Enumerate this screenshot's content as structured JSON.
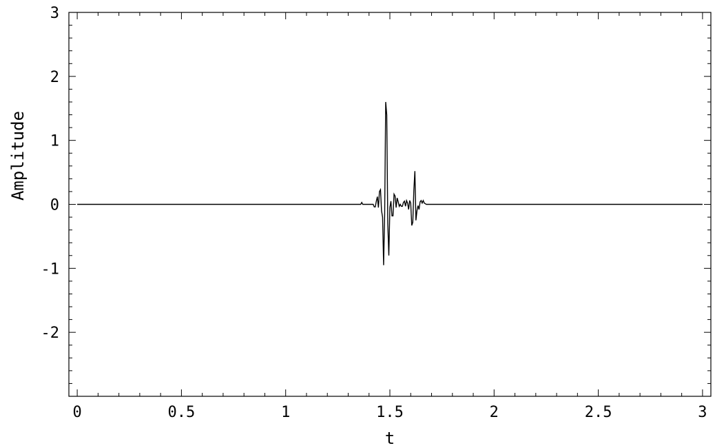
{
  "chart_data": {
    "type": "line",
    "title": "",
    "xlabel": "t",
    "ylabel": "Amplitude",
    "xlim": [
      -0.04,
      3.04
    ],
    "ylim": [
      -3.0,
      3.0
    ],
    "x_ticks": [
      0,
      0.5,
      1,
      1.5,
      2,
      2.5,
      3
    ],
    "x_tick_labels": [
      "0",
      "0.5",
      "1",
      "1.5",
      "2",
      "2.5",
      "3"
    ],
    "y_ticks": [
      -2,
      -1,
      0,
      1,
      2,
      3
    ],
    "y_tick_labels": [
      "-2",
      "-1",
      "0",
      "1",
      "2",
      "3"
    ],
    "grid": false,
    "line_color": "#000000",
    "series": [
      {
        "x": [
          0,
          1.36,
          1.365,
          1.37,
          1.375,
          1.38,
          1.39,
          1.4,
          1.41,
          1.42,
          1.425,
          1.43,
          1.435,
          1.44,
          1.445,
          1.45,
          1.455,
          1.46,
          1.465,
          1.47,
          1.475,
          1.48,
          1.485,
          1.49,
          1.495,
          1.5,
          1.505,
          1.51,
          1.515,
          1.52,
          1.525,
          1.53,
          1.535,
          1.54,
          1.545,
          1.55,
          1.555,
          1.56,
          1.565,
          1.57,
          1.575,
          1.58,
          1.585,
          1.59,
          1.595,
          1.6,
          1.605,
          1.61,
          1.615,
          1.62,
          1.625,
          1.63,
          1.635,
          1.64,
          1.645,
          1.65,
          1.655,
          1.66,
          1.665,
          1.67,
          1.675,
          1.68,
          1.685,
          1.69,
          1.695,
          1.7,
          1.705,
          1.71,
          1.715,
          1.72,
          1.725,
          1.73,
          1.735,
          1.74,
          1.745,
          1.75,
          3
        ],
        "y": [
          0,
          0,
          0.03,
          0,
          0,
          0,
          0,
          0,
          0,
          0,
          -0.04,
          -0.04,
          0.05,
          0.12,
          -0.05,
          0.2,
          0.23,
          -0.1,
          -0.2,
          -0.95,
          -0.15,
          1.6,
          1.4,
          -0.3,
          -0.8,
          -0.05,
          0.05,
          -0.18,
          -0.18,
          0.16,
          0.13,
          -0.05,
          0.1,
          0.04,
          -0.03,
          0,
          -0.03,
          -0.03,
          0.03,
          0.05,
          -0.03,
          0.06,
          0.02,
          -0.08,
          0.06,
          0.02,
          -0.33,
          -0.28,
          0.22,
          0.52,
          -0.25,
          -0.1,
          -0.02,
          -0.08,
          0.04,
          0.06,
          0.02,
          0.06,
          0.02,
          0.01,
          0,
          0,
          0,
          0,
          0,
          0,
          0,
          0,
          0,
          0,
          0,
          0,
          0,
          0,
          0,
          0,
          0
        ]
      }
    ]
  }
}
